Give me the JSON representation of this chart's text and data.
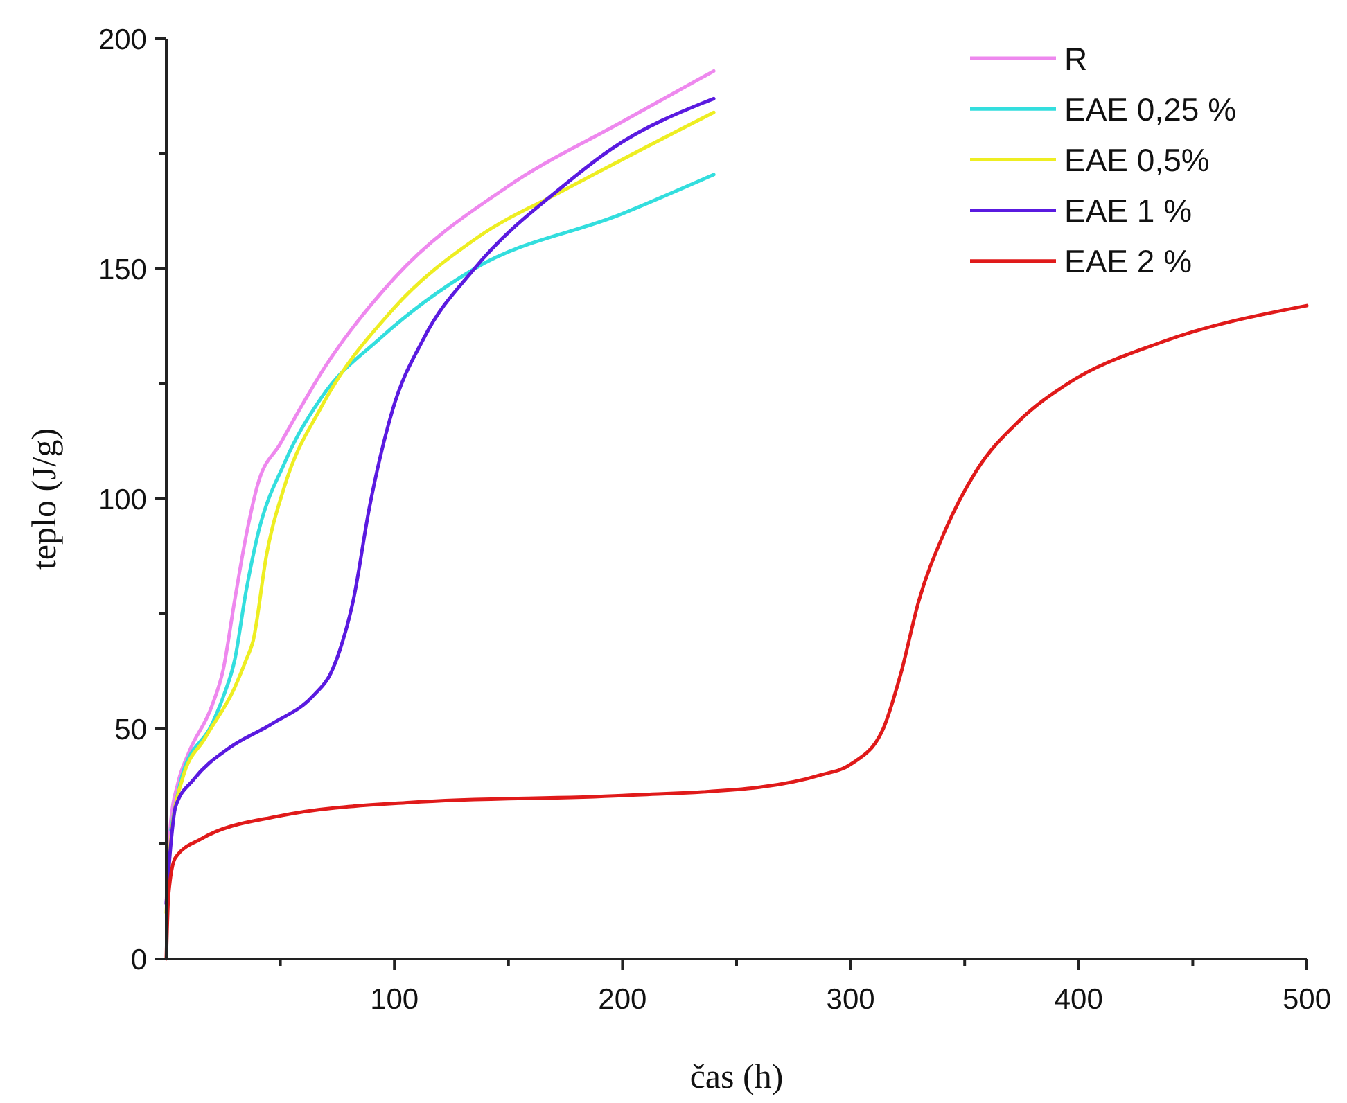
{
  "chart_data": {
    "type": "line",
    "xlabel": "čas (h)",
    "ylabel": "teplo (J/g)",
    "xlim": [
      0,
      500
    ],
    "ylim": [
      0,
      200
    ],
    "xticks": [
      {
        "value": 50,
        "label": null
      },
      100,
      {
        "value": 150,
        "label": null
      },
      200,
      {
        "value": 250,
        "label": null
      },
      300,
      {
        "value": 350,
        "label": null
      },
      400,
      {
        "value": 450,
        "label": null
      },
      500
    ],
    "yticks": [
      0,
      {
        "value": 25,
        "label": null
      },
      50,
      {
        "value": 75,
        "label": null
      },
      100,
      {
        "value": 125,
        "label": null
      },
      150,
      {
        "value": 175,
        "label": null
      },
      200
    ],
    "grid": false,
    "legend": "top right",
    "marker": "none",
    "line_style": "solid",
    "series": [
      {
        "name": "R",
        "color": "#ee88ee",
        "x": [
          0,
          2,
          5,
          10,
          20,
          25,
          30,
          35,
          40,
          50,
          70,
          100,
          150,
          200,
          240
        ],
        "values": [
          12,
          30,
          38,
          45,
          55,
          63,
          78,
          92,
          103,
          112,
          129,
          148,
          168,
          182,
          193
        ]
      },
      {
        "name": "EAE 0,25 %",
        "color": "#33dede",
        "x": [
          2,
          7,
          20,
          25,
          30,
          35,
          40,
          52,
          68,
          94,
          135,
          200,
          240
        ],
        "values": [
          28,
          40,
          51,
          57,
          65,
          80,
          92,
          108,
          122,
          135,
          150,
          162,
          170.5
        ]
      },
      {
        "name": "EAE 0,5%",
        "color": "#eeee22",
        "x": [
          0,
          2,
          7,
          17,
          30,
          35,
          38,
          44,
          52,
          68,
          99,
          137,
          174,
          240
        ],
        "values": [
          10,
          26,
          39,
          48,
          59,
          65,
          69,
          88,
          103,
          120,
          141,
          157,
          167,
          184
        ]
      },
      {
        "name": "EAE 1 %",
        "color": "#5a1ae0",
        "x": [
          0,
          2,
          4,
          12,
          28,
          46,
          65,
          72,
          76,
          82,
          89,
          99,
          113,
          135,
          174,
          195,
          240
        ],
        "values": [
          12,
          25,
          33,
          39,
          46,
          51,
          57.5,
          62,
          67,
          78,
          98,
          119,
          135,
          150,
          168,
          176,
          187
        ]
      },
      {
        "name": "EAE 2 %",
        "color": "#e01a1a",
        "x": [
          0,
          1,
          4,
          15,
          49,
          107,
          200,
          260,
          287,
          300,
          314,
          322,
          330,
          341,
          355,
          374,
          395,
          436,
          500
        ],
        "values": [
          0,
          14,
          22,
          26,
          31,
          34,
          35.5,
          37.3,
          40,
          42.3,
          49.7,
          62,
          78,
          92.6,
          106,
          117,
          125,
          134,
          142
        ]
      }
    ]
  }
}
